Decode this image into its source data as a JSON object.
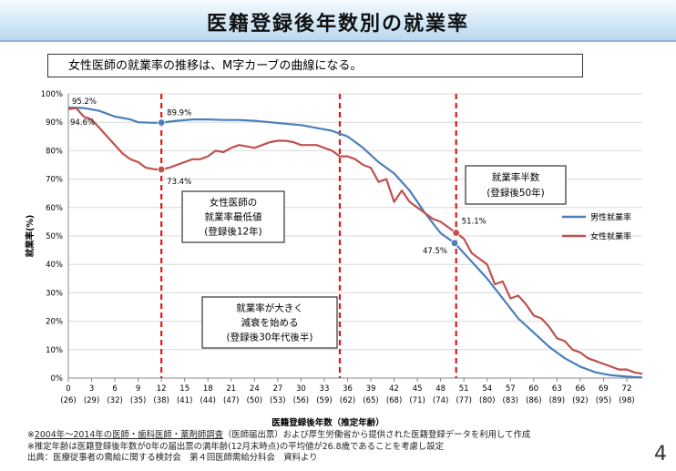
{
  "title": "医籍登録後年数別の就業率",
  "subtitle": "女性医師の就業率の推移は、M字カーブの曲線になる。",
  "chart_data": {
    "type": "line",
    "ylabel": "就業率(%)",
    "xlabel": "医籍登録後年数（推定年齢）",
    "ylim": [
      0,
      100
    ],
    "xlim": [
      0,
      74
    ],
    "y_ticks": [
      "0%",
      "10%",
      "20%",
      "30%",
      "40%",
      "50%",
      "60%",
      "70%",
      "80%",
      "90%",
      "100%"
    ],
    "x_ticks": [
      {
        "years": "0",
        "age": "(26)"
      },
      {
        "years": "3",
        "age": "(29)"
      },
      {
        "years": "6",
        "age": "(32)"
      },
      {
        "years": "9",
        "age": "(35)"
      },
      {
        "years": "12",
        "age": "(38)"
      },
      {
        "years": "15",
        "age": "(41)"
      },
      {
        "years": "18",
        "age": "(44)"
      },
      {
        "years": "21",
        "age": "(47)"
      },
      {
        "years": "24",
        "age": "(50)"
      },
      {
        "years": "27",
        "age": "(53)"
      },
      {
        "years": "30",
        "age": "(56)"
      },
      {
        "years": "33",
        "age": "(59)"
      },
      {
        "years": "36",
        "age": "(62)"
      },
      {
        "years": "39",
        "age": "(65)"
      },
      {
        "years": "42",
        "age": "(68)"
      },
      {
        "years": "45",
        "age": "(71)"
      },
      {
        "years": "48",
        "age": "(74)"
      },
      {
        "years": "51",
        "age": "(77)"
      },
      {
        "years": "54",
        "age": "(80)"
      },
      {
        "years": "57",
        "age": "(83)"
      },
      {
        "years": "60",
        "age": "(86)"
      },
      {
        "years": "63",
        "age": "(89)"
      },
      {
        "years": "66",
        "age": "(92)"
      },
      {
        "years": "69",
        "age": "(95)"
      },
      {
        "years": "72",
        "age": "(98)"
      }
    ],
    "series": [
      {
        "name": "男性就業率",
        "color": "#4a7ebb",
        "points": [
          [
            0,
            95.2
          ],
          [
            2,
            95
          ],
          [
            4,
            94
          ],
          [
            6,
            92
          ],
          [
            8,
            91
          ],
          [
            9,
            90
          ],
          [
            11,
            89.8
          ],
          [
            12,
            89.9
          ],
          [
            14,
            90.5
          ],
          [
            16,
            91
          ],
          [
            18,
            91
          ],
          [
            20,
            90.8
          ],
          [
            22,
            90.8
          ],
          [
            24,
            90.5
          ],
          [
            26,
            90
          ],
          [
            28,
            89.5
          ],
          [
            30,
            89
          ],
          [
            32,
            88
          ],
          [
            34,
            87
          ],
          [
            36,
            85
          ],
          [
            38,
            81
          ],
          [
            40,
            76
          ],
          [
            42,
            72
          ],
          [
            44,
            66
          ],
          [
            46,
            58
          ],
          [
            48,
            51
          ],
          [
            49.8,
            47.5
          ],
          [
            52,
            41
          ],
          [
            54,
            35
          ],
          [
            56,
            28
          ],
          [
            58,
            21
          ],
          [
            60,
            16
          ],
          [
            62,
            11
          ],
          [
            64,
            7
          ],
          [
            66,
            4
          ],
          [
            68,
            2
          ],
          [
            70,
            1
          ],
          [
            72,
            0.5
          ],
          [
            74,
            0.2
          ]
        ]
      },
      {
        "name": "女性就業率",
        "color": "#c0504d",
        "points": [
          [
            0,
            94.6
          ],
          [
            1,
            95
          ],
          [
            2,
            92
          ],
          [
            3,
            91
          ],
          [
            4,
            88
          ],
          [
            5,
            85
          ],
          [
            6,
            82
          ],
          [
            7,
            79
          ],
          [
            8,
            77
          ],
          [
            9,
            76
          ],
          [
            10,
            74
          ],
          [
            11,
            73.5
          ],
          [
            12,
            73.4
          ],
          [
            13,
            74
          ],
          [
            14,
            75
          ],
          [
            15,
            76
          ],
          [
            16,
            77
          ],
          [
            17,
            77
          ],
          [
            18,
            78
          ],
          [
            19,
            80
          ],
          [
            20,
            79.5
          ],
          [
            21,
            81
          ],
          [
            22,
            82
          ],
          [
            23,
            81.5
          ],
          [
            24,
            81
          ],
          [
            25,
            82
          ],
          [
            26,
            83
          ],
          [
            27,
            83.5
          ],
          [
            28,
            83.5
          ],
          [
            29,
            83
          ],
          [
            30,
            82
          ],
          [
            31,
            82
          ],
          [
            32,
            82
          ],
          [
            33,
            81
          ],
          [
            34,
            80
          ],
          [
            35,
            78
          ],
          [
            36,
            78
          ],
          [
            37,
            77
          ],
          [
            38,
            75
          ],
          [
            39,
            74
          ],
          [
            40,
            69
          ],
          [
            41,
            70
          ],
          [
            42,
            62
          ],
          [
            43,
            66
          ],
          [
            44,
            62
          ],
          [
            45,
            60
          ],
          [
            46,
            58
          ],
          [
            47,
            56
          ],
          [
            48,
            55
          ],
          [
            49,
            53
          ],
          [
            50,
            51.1
          ],
          [
            51,
            49
          ],
          [
            52,
            44
          ],
          [
            53,
            42
          ],
          [
            54,
            40
          ],
          [
            55,
            33
          ],
          [
            56,
            34
          ],
          [
            57,
            28
          ],
          [
            58,
            29
          ],
          [
            59,
            26
          ],
          [
            60,
            22
          ],
          [
            61,
            21
          ],
          [
            62,
            18
          ],
          [
            63,
            14
          ],
          [
            64,
            13
          ],
          [
            65,
            10
          ],
          [
            66,
            9
          ],
          [
            67,
            7
          ],
          [
            68,
            6
          ],
          [
            69,
            5
          ],
          [
            70,
            4
          ],
          [
            71,
            3
          ],
          [
            72,
            3
          ],
          [
            73,
            2
          ],
          [
            74,
            1.5
          ]
        ]
      }
    ],
    "point_labels": [
      {
        "text": "95.2%",
        "x": 0,
        "y": 95.2,
        "series": "男性就業率"
      },
      {
        "text": "94.6%",
        "x": 0,
        "y": 94.6,
        "series": "女性就業率"
      },
      {
        "text": "89.9%",
        "x": 12,
        "y": 89.9,
        "series": "男性就業率"
      },
      {
        "text": "73.4%",
        "x": 12,
        "y": 73.4,
        "series": "女性就業率"
      },
      {
        "text": "47.5%",
        "x": 49.8,
        "y": 47.5,
        "series": "男性就業率"
      },
      {
        "text": "51.1%",
        "x": 50,
        "y": 51.1,
        "series": "女性就業率"
      }
    ],
    "reference_lines_x": [
      12,
      35,
      50
    ],
    "annotations": [
      {
        "lines": [
          "女性医師の",
          "就業率最低値",
          "(登録後12年)"
        ]
      },
      {
        "lines": [
          "就業率が大きく",
          "減衰を始める",
          "(登録後30年代後半)"
        ]
      },
      {
        "lines": [
          "就業率半数",
          "(登録後50年)"
        ]
      }
    ],
    "legend_position": "right"
  },
  "footnotes": {
    "line1_underlined": "2004年～2014年の医師・歯科医師・薬剤師調査",
    "line1_rest": "（医師届出票）および厚生労働省から提供された医籍登録データを利用して作成",
    "line1_prefix": "※",
    "line2": "※推定年齢は医籍登録後年数が0年の届出票の満年齢(12月末時点)の平均値が26.8歳であることを考慮し設定",
    "line3": "出典：医療従事者の需給に関する検討会　第４回医師需給分科会　資料より"
  },
  "page_number": "4"
}
